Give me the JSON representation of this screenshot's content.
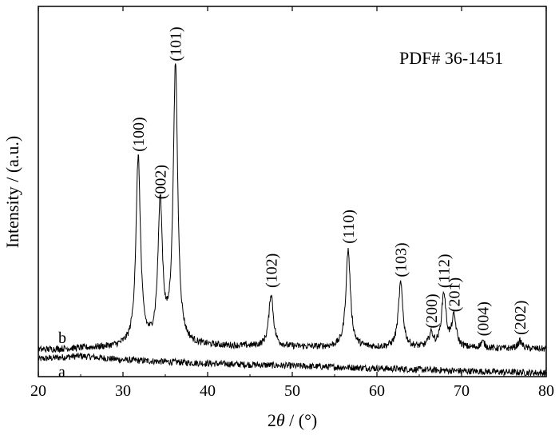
{
  "chart_data": {
    "type": "line",
    "xlabel_prefix": "2",
    "xlabel_theta": "θ",
    "xlabel_suffix": " / (°)",
    "ylabel": "Intensity / (a.u.)",
    "xlim": [
      20,
      80
    ],
    "x_ticks": [
      20,
      30,
      40,
      50,
      60,
      70,
      80
    ],
    "y_ticks_shown": false,
    "grid": false,
    "annotation": "PDF# 36-1451",
    "series": [
      {
        "name": "a",
        "baseline": [
          [
            20,
            0.035
          ],
          [
            25,
            0.045
          ],
          [
            30,
            0.032
          ],
          [
            40,
            0.02
          ],
          [
            50,
            0.012
          ],
          [
            60,
            0.004
          ],
          [
            70,
            -0.005
          ],
          [
            80,
            -0.012
          ]
        ],
        "peaks": []
      },
      {
        "name": "b",
        "baseline": [
          [
            20,
            0.065
          ],
          [
            25,
            0.07
          ],
          [
            30,
            0.074
          ],
          [
            40,
            0.078
          ],
          [
            50,
            0.075
          ],
          [
            60,
            0.072
          ],
          [
            70,
            0.07
          ],
          [
            80,
            0.068
          ]
        ],
        "peaks": [
          {
            "x": 31.8,
            "y": 0.63,
            "label": "(100)"
          },
          {
            "x": 34.4,
            "y": 0.47,
            "label": "(002)"
          },
          {
            "x": 36.2,
            "y": 0.93,
            "label": "(101)"
          },
          {
            "x": 47.5,
            "y": 0.175,
            "label": "(102)"
          },
          {
            "x": 56.6,
            "y": 0.325,
            "label": "(110)"
          },
          {
            "x": 62.8,
            "y": 0.215,
            "label": "(103)"
          },
          {
            "x": 66.4,
            "y": 0.045,
            "label": "(200)"
          },
          {
            "x": 67.9,
            "y": 0.18,
            "label": "(112)"
          },
          {
            "x": 69.1,
            "y": 0.1,
            "label": "(201)"
          },
          {
            "x": 72.5,
            "y": 0.02,
            "label": "(004)"
          },
          {
            "x": 76.9,
            "y": 0.025,
            "label": "(202)"
          }
        ]
      }
    ]
  }
}
